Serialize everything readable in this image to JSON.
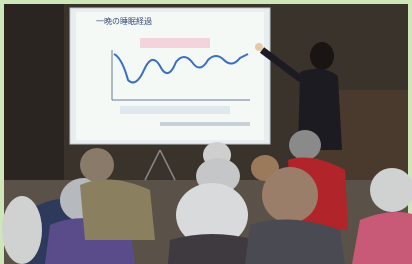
{
  "slide": {
    "title": "一晩の睡眠経過"
  }
}
